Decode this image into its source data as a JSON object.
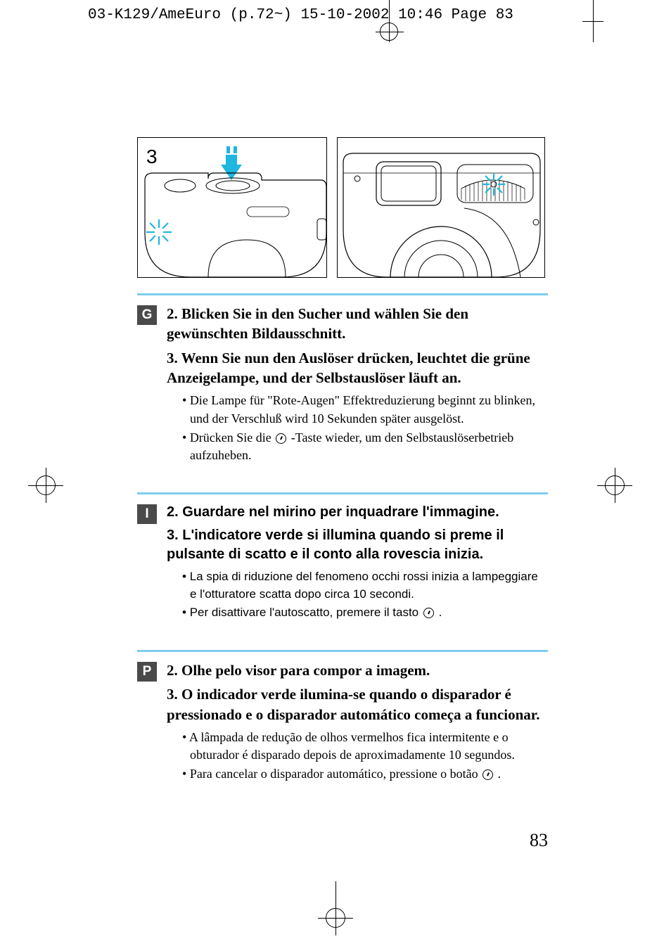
{
  "header": "03-K129/AmeEuro (p.72~)  15-10-2002  10:46  Page 83",
  "diagram_label": "3",
  "page_number": "83",
  "colors": {
    "divider": "#7eccee",
    "badge_bg": "#4a4a4a",
    "badge_fg": "#ffffff",
    "arrow": "#1fb6e0",
    "star": "#1fb6e0"
  },
  "sections": [
    {
      "badge": "G",
      "font": "serif",
      "steps": [
        {
          "n": "2.",
          "text": "Blicken Sie in den Sucher und wählen Sie den gewünschten Bildausschnitt."
        },
        {
          "n": "3.",
          "text": "Wenn Sie nun den Auslöser drücken, leuchtet die grüne Anzeigelampe, und der Selbstauslöser läuft an."
        }
      ],
      "bullets": [
        {
          "pre": "Die Lampe für \"Rote-Augen\" Effektreduzierung beginnt zu blinken, und der Verschluß wird 10 Sekunden später ausgelöst.",
          "icon": false,
          "post": ""
        },
        {
          "pre": "Drücken Sie die ",
          "icon": true,
          "post": " -Taste wieder, um den Selbstauslöserbetrieb aufzuheben."
        }
      ]
    },
    {
      "badge": "I",
      "font": "sans",
      "steps": [
        {
          "n": "2.",
          "text": "Guardare nel mirino per inquadrare l'immagine."
        },
        {
          "n": "3.",
          "text": "L'indicatore verde si illumina quando si preme il pulsante di scatto e il conto alla rovescia inizia."
        }
      ],
      "bullets": [
        {
          "pre": "La spia di riduzione del fenomeno occhi rossi inizia a lampeggiare e l'otturatore scatta dopo circa 10 secondi.",
          "icon": false,
          "post": ""
        },
        {
          "pre": "Per disattivare l'autoscatto, premere il tasto ",
          "icon": true,
          "post": " ."
        }
      ]
    },
    {
      "badge": "P",
      "font": "serif",
      "steps": [
        {
          "n": "2.",
          "text": "Olhe pelo visor para compor a imagem."
        },
        {
          "n": "3.",
          "text": "O indicador verde ilumina-se quando o disparador é pressionado e o disparador automático começa a funcionar."
        }
      ],
      "bullets": [
        {
          "pre": "A lâmpada de redução de olhos vermelhos fica intermitente e o obturador é disparado depois de aproximadamente 10 segundos.",
          "icon": false,
          "post": ""
        },
        {
          "pre": "Para cancelar o disparador automático, pressione o botão ",
          "icon": true,
          "post": " ."
        }
      ]
    }
  ]
}
